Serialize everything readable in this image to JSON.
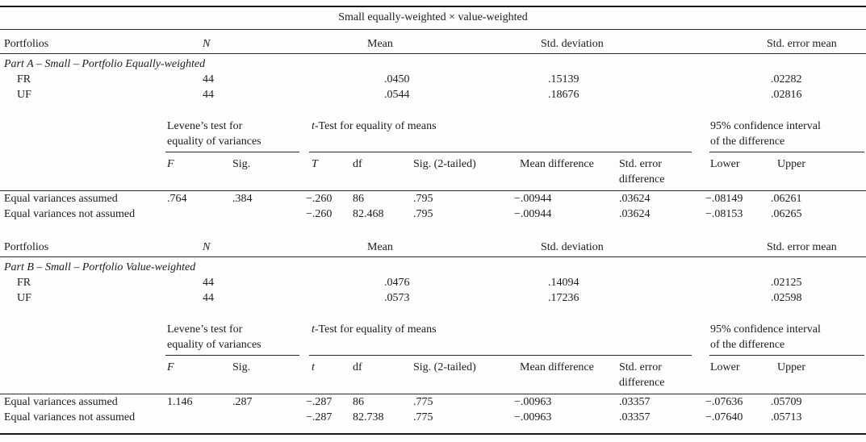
{
  "table": {
    "title": "Small equally-weighted × value-weighted",
    "summary_header": {
      "portfolios": "Portfolios",
      "n": "N",
      "mean": "Mean",
      "std": "Std. deviation",
      "sem": "Std. error mean"
    },
    "test_header": {
      "levene_line1": "Levene’s test for",
      "levene_line2": "equality of variances",
      "ttest_italic": "t",
      "ttest_rest": "-Test for equality of means",
      "ci_line1": "95% confidence interval",
      "ci_line2": "of the difference",
      "f": "F",
      "sig": "Sig.",
      "df": "df",
      "sig2": "Sig. (2-tailed)",
      "mean_diff": "Mean difference",
      "sed_line1": "Std. error",
      "sed_line2": "difference",
      "lower": "Lower",
      "upper": "Upper"
    },
    "part_a": {
      "label": "Part A – Small – Portfolio Equally-weighted",
      "t_head": "T",
      "rows": [
        {
          "name": "FR",
          "n": "44",
          "mean": ".0450",
          "std": ".15139",
          "sem": ".02282"
        },
        {
          "name": "UF",
          "n": "44",
          "mean": ".0544",
          "std": ".18676",
          "sem": ".02816"
        }
      ],
      "tests": [
        {
          "label": "Equal variances assumed",
          "f": ".764",
          "sig": ".384",
          "t": "−.260",
          "df": "86",
          "sig2": ".795",
          "md": "−.00944",
          "sed": ".03624",
          "lower": "−.08149",
          "upper": ".06261"
        },
        {
          "label": "Equal variances not assumed",
          "f": "",
          "sig": "",
          "t": "−.260",
          "df": "82.468",
          "sig2": ".795",
          "md": "−.00944",
          "sed": ".03624",
          "lower": "−.08153",
          "upper": ".06265"
        }
      ]
    },
    "part_b": {
      "label": "Part B – Small – Portfolio Value-weighted",
      "t_head": "t",
      "rows": [
        {
          "name": "FR",
          "n": "44",
          "mean": ".0476",
          "std": ".14094",
          "sem": ".02125"
        },
        {
          "name": "UF",
          "n": "44",
          "mean": ".0573",
          "std": ".17236",
          "sem": ".02598"
        }
      ],
      "tests": [
        {
          "label": "Equal variances assumed",
          "f": "1.146",
          "sig": ".287",
          "t": "−.287",
          "df": "86",
          "sig2": ".775",
          "md": "−.00963",
          "sed": ".03357",
          "lower": "−.07636",
          "upper": ".05709"
        },
        {
          "label": "Equal variances not assumed",
          "f": "",
          "sig": "",
          "t": "−.287",
          "df": "82.738",
          "sig2": ".775",
          "md": "−.00963",
          "sed": ".03357",
          "lower": "−.07640",
          "upper": ".05713"
        }
      ]
    }
  }
}
